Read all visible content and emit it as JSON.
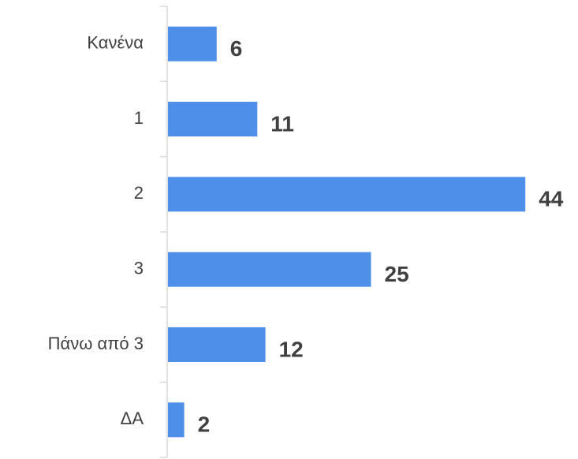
{
  "chart_data": {
    "type": "bar",
    "orientation": "horizontal",
    "categories": [
      "Κανένα",
      "1",
      "2",
      "3",
      "Πάνω από 3",
      "ΔΑ"
    ],
    "values": [
      6,
      11,
      44,
      25,
      12,
      2
    ],
    "color": "#4e8fea"
  }
}
